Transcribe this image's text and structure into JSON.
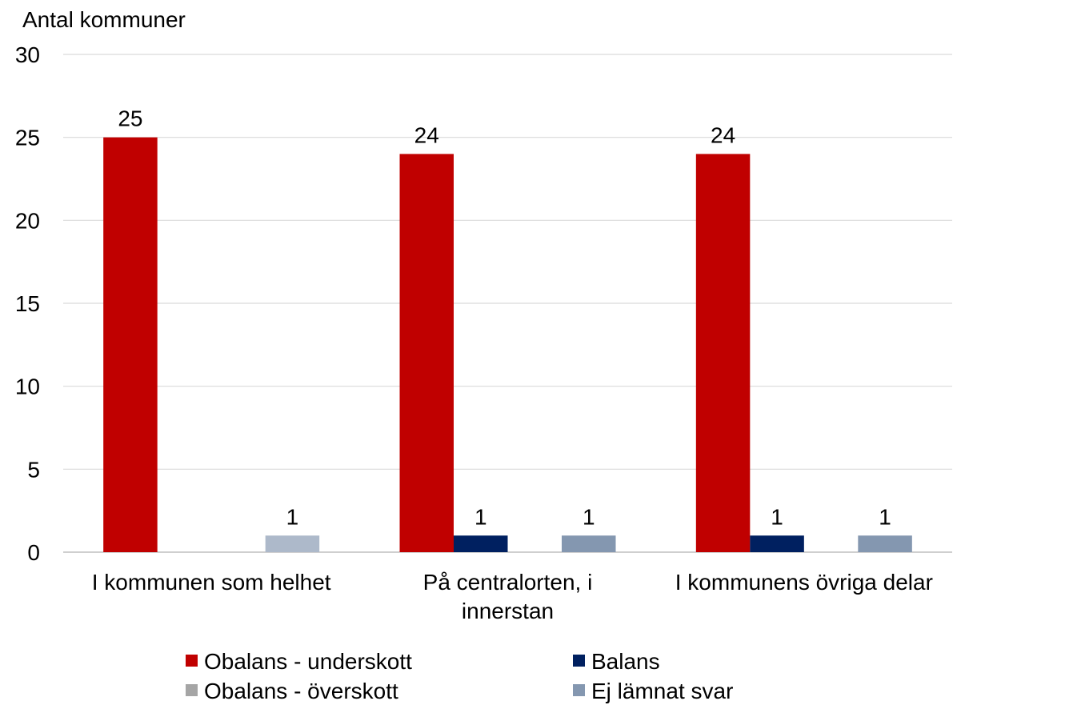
{
  "chart_data": {
    "type": "bar",
    "ylabel": "Antal kommuner",
    "ylim": [
      0,
      30
    ],
    "yticks": [
      0,
      5,
      10,
      15,
      20,
      25,
      30
    ],
    "grid": true,
    "legend_position": "bottom",
    "categories": [
      [
        "I kommunen som helhet"
      ],
      [
        "På centralorten, i",
        "innerstan"
      ],
      [
        "I kommunens övriga delar"
      ]
    ],
    "series": [
      {
        "name": "Obalans - underskott",
        "color": "#C00000",
        "values": [
          25,
          24,
          24
        ]
      },
      {
        "name": "Balans",
        "color": "#002060",
        "values": [
          0,
          1,
          1
        ]
      },
      {
        "name": "Obalans - överskott",
        "color": "#A5A5A5",
        "values": [
          0,
          0,
          0
        ]
      },
      {
        "name": "Ej lämnat svar",
        "color": "#8497B0",
        "values": [
          1,
          1,
          1
        ]
      }
    ],
    "point_colors": {
      "0-3": "#ADB9CA"
    },
    "data_labels_hidden_for_zero": true
  }
}
